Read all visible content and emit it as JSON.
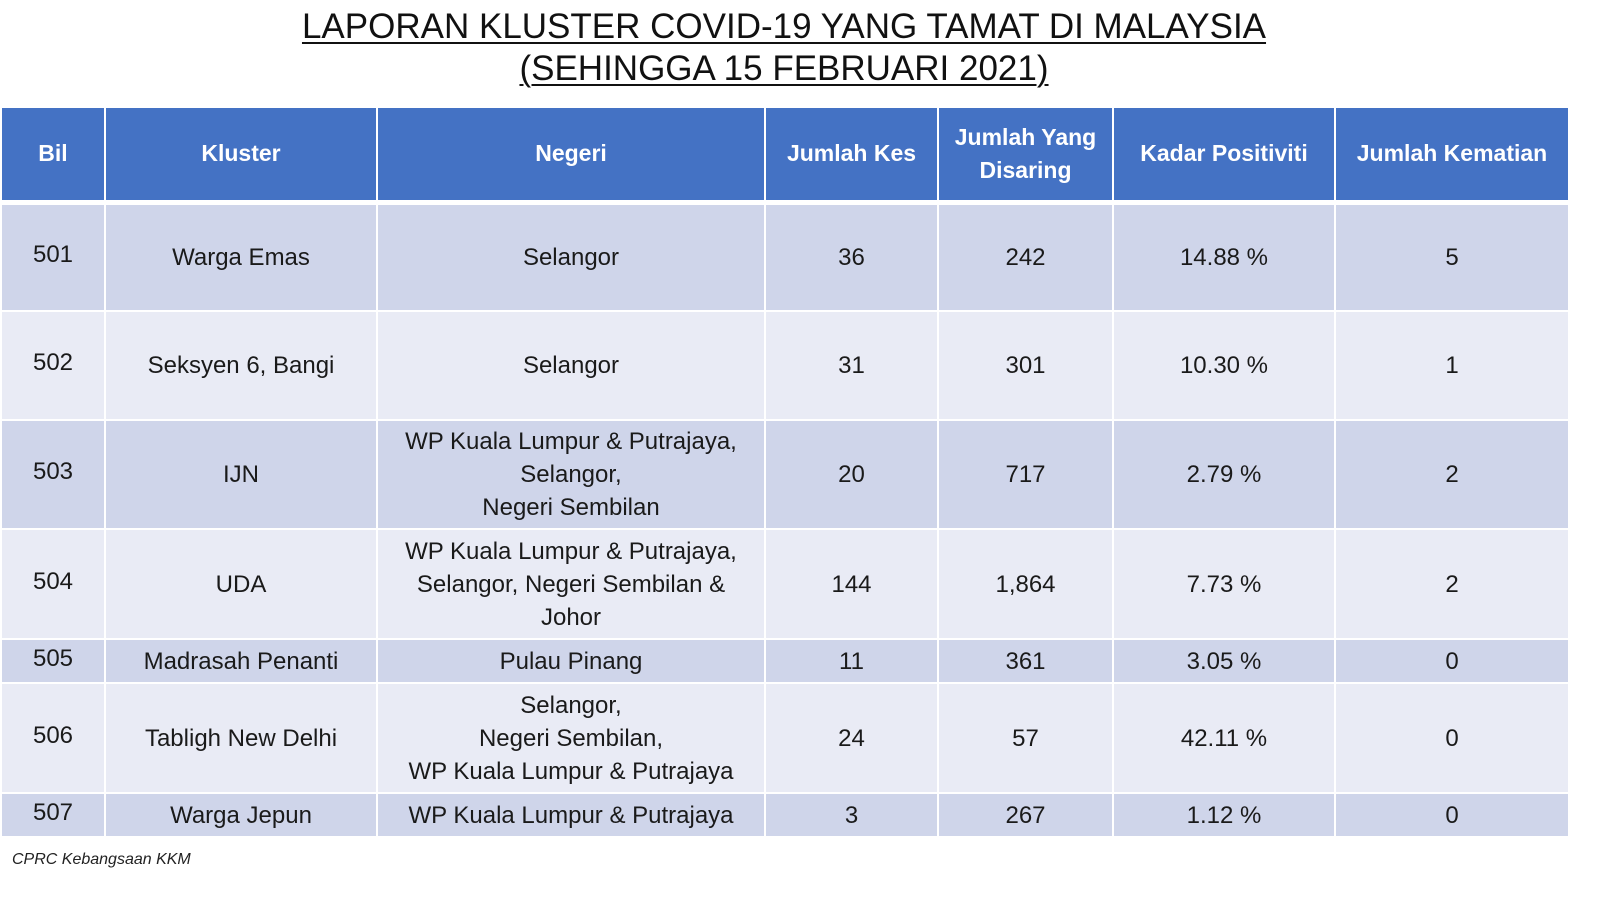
{
  "title": {
    "line1": "LAPORAN KLUSTER COVID-19 YANG TAMAT DI MALAYSIA",
    "line2": "(SEHINGGA 15 FEBRUARI 2021)"
  },
  "table": {
    "headers": {
      "bil": "Bil",
      "kluster": "Kluster",
      "negeri": "Negeri",
      "jumlah_kes": "Jumlah Kes",
      "jumlah_disaring": "Jumlah Yang Disaring",
      "kadar_positiviti": "Kadar Positiviti",
      "jumlah_kematian": "Jumlah Kematian"
    },
    "rows": [
      {
        "bil": "501",
        "kluster": "Warga Emas",
        "negeri": "Selangor",
        "kes": "36",
        "disaring": "242",
        "positiviti": "14.88 %",
        "kematian": "5"
      },
      {
        "bil": "502",
        "kluster": "Seksyen 6, Bangi",
        "negeri": "Selangor",
        "kes": "31",
        "disaring": "301",
        "positiviti": "10.30 %",
        "kematian": "1"
      },
      {
        "bil": "503",
        "kluster": "IJN",
        "negeri": "WP Kuala Lumpur & Putrajaya,\nSelangor,\nNegeri Sembilan",
        "kes": "20",
        "disaring": "717",
        "positiviti": "2.79 %",
        "kematian": "2"
      },
      {
        "bil": "504",
        "kluster": "UDA",
        "negeri": "WP Kuala Lumpur & Putrajaya,\nSelangor, Negeri Sembilan &\nJohor",
        "kes": "144",
        "disaring": "1,864",
        "positiviti": "7.73 %",
        "kematian": "2"
      },
      {
        "bil": "505",
        "kluster": "Madrasah Penanti",
        "negeri": "Pulau Pinang",
        "kes": "11",
        "disaring": "361",
        "positiviti": "3.05 %",
        "kematian": "0"
      },
      {
        "bil": "506",
        "kluster": "Tabligh New Delhi",
        "negeri": "Selangor,\nNegeri Sembilan,\nWP Kuala Lumpur & Putrajaya",
        "kes": "24",
        "disaring": "57",
        "positiviti": "42.11 %",
        "kematian": "0"
      },
      {
        "bil": "507",
        "kluster": "Warga Jepun",
        "negeri": "WP Kuala Lumpur & Putrajaya",
        "kes": "3",
        "disaring": "267",
        "positiviti": "1.12 %",
        "kematian": "0"
      }
    ]
  },
  "footer": "CPRC Kebangsaan KKM"
}
